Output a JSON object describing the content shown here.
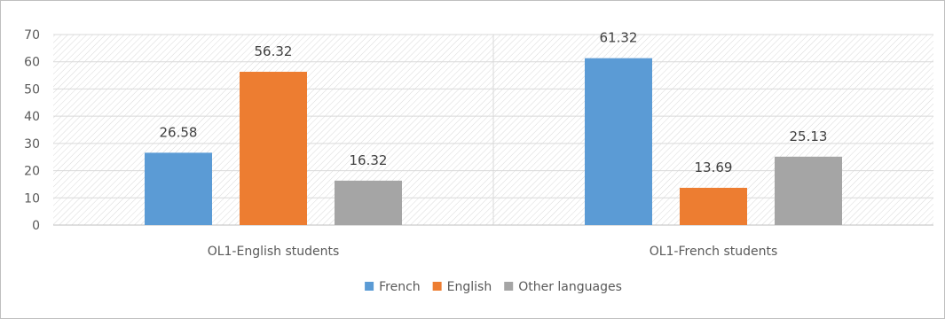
{
  "chart_data": {
    "type": "bar",
    "categories": [
      "OL1-English students",
      "OL1-French students"
    ],
    "series": [
      {
        "name": "French",
        "values": [
          26.58,
          61.32
        ],
        "color": "#5b9bd5"
      },
      {
        "name": "English",
        "values": [
          56.32,
          13.69
        ],
        "color": "#ed7d31"
      },
      {
        "name": "Other languages",
        "values": [
          16.32,
          25.13
        ],
        "color": "#a5a5a5"
      }
    ],
    "ylim": [
      0,
      70
    ],
    "yticks": [
      0,
      10,
      20,
      30,
      40,
      50,
      60,
      70
    ],
    "title": "",
    "xlabel": "",
    "ylabel": "",
    "grid": true,
    "legend_position": "bottom"
  }
}
